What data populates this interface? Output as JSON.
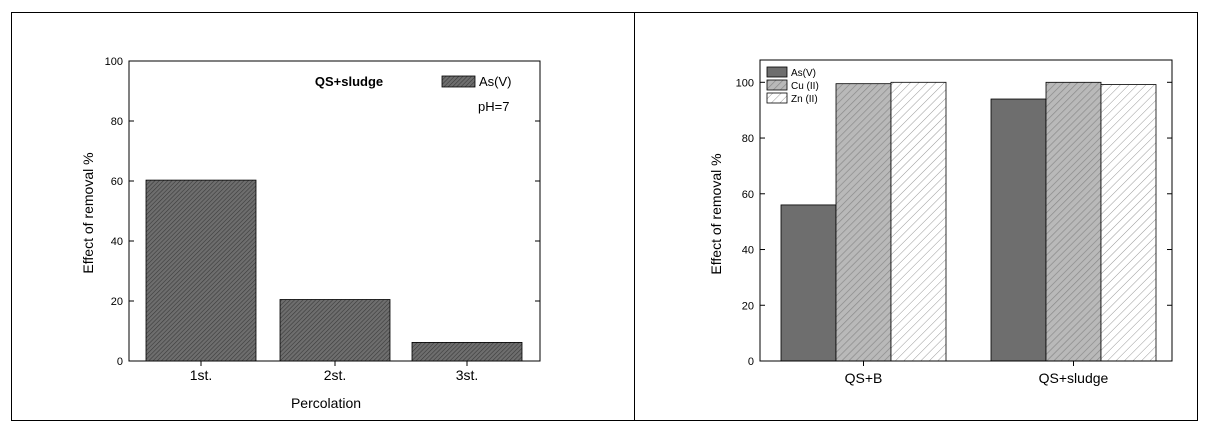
{
  "chart_data": [
    {
      "type": "bar",
      "title": "",
      "annotation": "QS+sludge",
      "note": "pH=7",
      "xlabel": "Percolation",
      "ylabel": "Effect of removal %",
      "ylim": [
        0,
        100
      ],
      "yticks": [
        0,
        20,
        40,
        60,
        80,
        100
      ],
      "categories": [
        "1st.",
        "2st.",
        "3st."
      ],
      "series": [
        {
          "name": "As(V)",
          "values": [
            60.3,
            20.5,
            6.2
          ],
          "pattern": "dense-hatch"
        }
      ],
      "legend": "top-right",
      "grid": false
    },
    {
      "type": "bar",
      "title": "",
      "xlabel": "",
      "ylabel": "Effect of removal %",
      "ylim": [
        0,
        108
      ],
      "yticks": [
        0,
        20,
        40,
        60,
        80,
        100
      ],
      "categories": [
        "QS+B",
        "QS+sludge"
      ],
      "series": [
        {
          "name": "As(V)",
          "values": [
            56,
            94
          ],
          "pattern": "dark-solid"
        },
        {
          "name": "Cu (II)",
          "values": [
            99.5,
            100
          ],
          "pattern": "grey-hatch"
        },
        {
          "name": "Zn (II)",
          "values": [
            100,
            99.2
          ],
          "pattern": "light-hatch"
        }
      ],
      "legend": "top-left",
      "grid": false
    }
  ]
}
